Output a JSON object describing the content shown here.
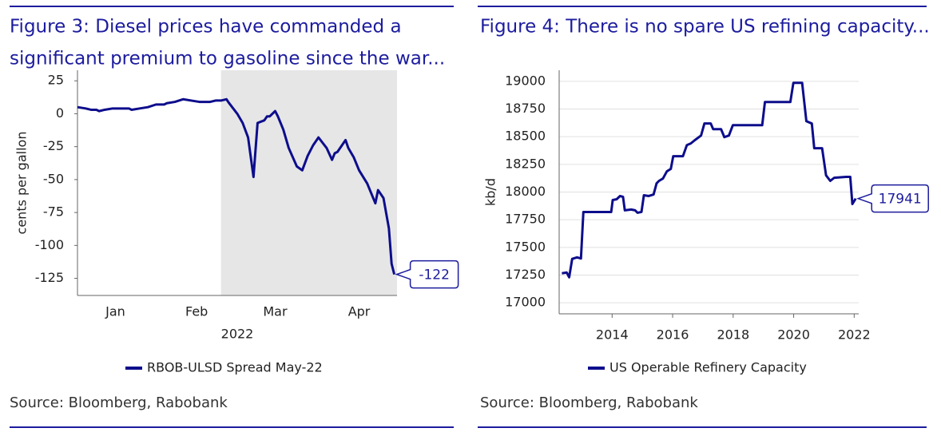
{
  "chart_data": [
    {
      "type": "line",
      "title": [
        "Figure 3: Diesel prices have commanded a",
        "significant premium to gasoline since the war..."
      ],
      "ylabel": "cents per gallon",
      "xlabel": "2022",
      "x": [
        1,
        4,
        6,
        8,
        9,
        11,
        14,
        20,
        21,
        24,
        27,
        30,
        33,
        34,
        37,
        40,
        43,
        46,
        50,
        52,
        54,
        56,
        57,
        60,
        62,
        64,
        66,
        67.5,
        70,
        71,
        72,
        74,
        75,
        77,
        79,
        82,
        84,
        86,
        88,
        90,
        93,
        95,
        96,
        97,
        100,
        101,
        103,
        105,
        108,
        111,
        112,
        114,
        116,
        117,
        118
      ],
      "series": [
        {
          "name": "RBOB-ULSD Spread May-22",
          "color": "#0d0d8c",
          "values": [
            5,
            4,
            3,
            3,
            2,
            3,
            4,
            4,
            3,
            4,
            5,
            7,
            7,
            8,
            9,
            11,
            10,
            9,
            9,
            10,
            10,
            11,
            8,
            0,
            -7,
            -18,
            -48,
            -7,
            -5,
            -2,
            -2,
            2,
            -2,
            -12,
            -26,
            -40,
            -43,
            -32,
            -24,
            -18,
            -26,
            -35,
            -30,
            -29,
            -20,
            -26,
            -33,
            -43,
            -53,
            -68,
            -58,
            -64,
            -87,
            -114,
            -122
          ],
          "end_label": "-122"
        }
      ],
      "xlim": [
        1,
        119
      ],
      "xticks": [
        {
          "value": 15,
          "label": "Jan"
        },
        {
          "value": 45,
          "label": "Feb"
        },
        {
          "value": 74,
          "label": "Mar"
        },
        {
          "value": 105,
          "label": "Apr"
        }
      ],
      "ylim": [
        -138,
        33
      ],
      "yticks": [
        25,
        0,
        -25,
        -50,
        -75,
        -100,
        -125
      ],
      "shaded_from": 54,
      "grid": false,
      "source": "Source: Bloomberg, Rabobank"
    },
    {
      "type": "line",
      "title": [
        "Figure 4: There is no spare US refining capacity..."
      ],
      "ylabel": "kb/d",
      "x": [
        2012.34,
        2012.5,
        2012.58,
        2012.68,
        2012.84,
        2012.97,
        2013.05,
        2013.84,
        2013.97,
        2014.02,
        2014.15,
        2014.26,
        2014.36,
        2014.42,
        2014.63,
        2014.76,
        2014.84,
        2014.97,
        2015.05,
        2015.21,
        2015.37,
        2015.47,
        2015.55,
        2015.68,
        2015.81,
        2015.94,
        2016.02,
        2016.34,
        2016.47,
        2016.6,
        2016.73,
        2016.94,
        2017.05,
        2017.26,
        2017.34,
        2017.6,
        2017.71,
        2017.86,
        2017.99,
        2018.96,
        2019.05,
        2019.89,
        2019.99,
        2020.28,
        2020.42,
        2020.6,
        2020.68,
        2020.94,
        2021.07,
        2021.21,
        2021.34,
        2021.73,
        2021.87,
        2021.94,
        2022.05
      ],
      "series": [
        {
          "name": "US Operable Refinery Capacity",
          "color": "#0d0d8c",
          "values": [
            17266,
            17273,
            17230,
            17396,
            17410,
            17400,
            17820,
            17820,
            17820,
            17928,
            17935,
            17964,
            17957,
            17835,
            17842,
            17835,
            17813,
            17820,
            17971,
            17964,
            17978,
            18079,
            18101,
            18122,
            18187,
            18209,
            18324,
            18324,
            18424,
            18439,
            18468,
            18511,
            18619,
            18619,
            18568,
            18568,
            18496,
            18511,
            18604,
            18604,
            18813,
            18813,
            18986,
            18986,
            18640,
            18619,
            18396,
            18396,
            18151,
            18101,
            18129,
            18137,
            18137,
            17892,
            17941
          ],
          "end_label": "17941"
        }
      ],
      "xlim": [
        2012.25,
        2022.15
      ],
      "xticks": [
        2014,
        2016,
        2018,
        2020,
        2022
      ],
      "ylim": [
        16900,
        19100
      ],
      "yticks": [
        17000,
        17250,
        17500,
        17750,
        18000,
        18250,
        18500,
        18750,
        19000
      ],
      "grid": true,
      "source": "Source: Bloomberg, Rabobank"
    }
  ]
}
